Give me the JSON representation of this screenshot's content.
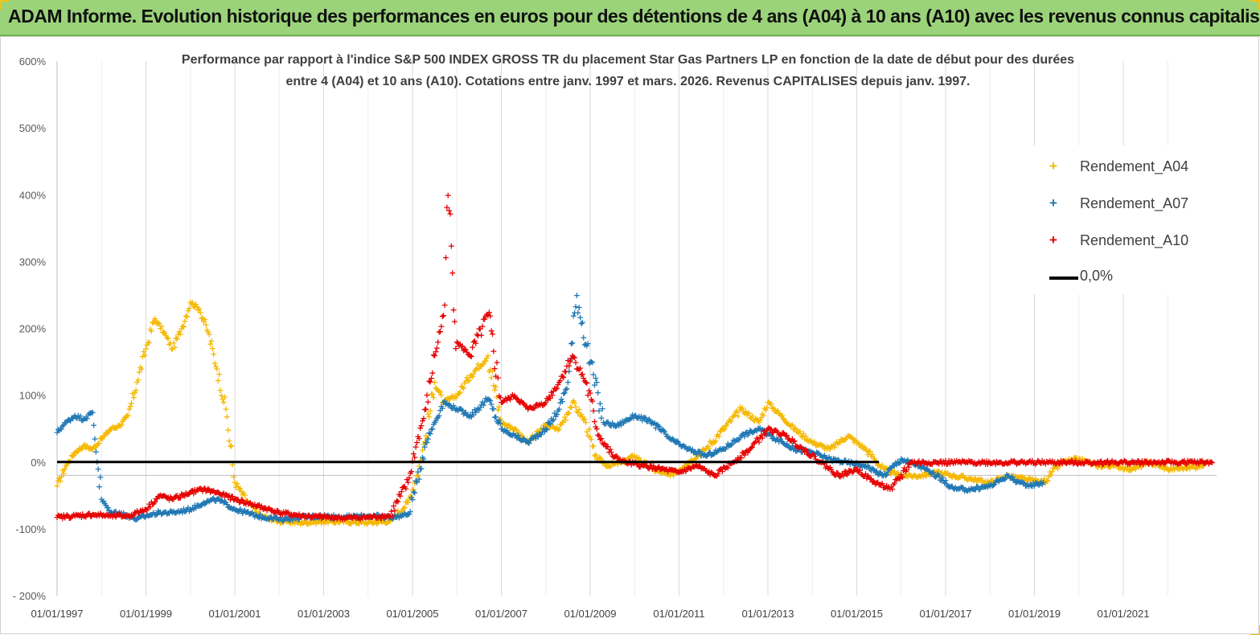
{
  "banner": {
    "title": "ADAM Informe. Evolution historique des performances en euros pour des détentions de 4 ans (A04) à 10 ans (A10) avec les revenus connus capitalisés"
  },
  "colors": {
    "banner_bg": "#9bd37a",
    "A04": "#f5b800",
    "A07": "#1f77b4",
    "A10": "#e60000",
    "zero_line": "#000000"
  },
  "chart_data": {
    "type": "scatter",
    "title": [
      "Performance par rapport à l'indice S&P 500 INDEX GROSS TR  du placement Star Gas Partners LP en fonction de la date de début pour des durées",
      "entre 4 (A04) et 10 ans (A10). Cotations entre janv. 1997 et mars. 2026. Revenus CAPITALISES depuis janv. 1997."
    ],
    "xlabel": "",
    "ylabel": "",
    "ylim": [
      -200,
      600
    ],
    "xlim": [
      1997.0,
      2023.1
    ],
    "y_ticks": [
      "600%",
      "500%",
      "400%",
      "300%",
      "200%",
      "100%",
      "0%",
      "-100%",
      "- 200%"
    ],
    "y_tick_values": [
      600,
      500,
      400,
      300,
      200,
      100,
      0,
      -100,
      -200
    ],
    "x_ticks": [
      "01/01/1997",
      "01/01/1999",
      "01/01/2001",
      "01/01/2003",
      "01/01/2005",
      "01/01/2007",
      "01/01/2009",
      "01/01/2011",
      "01/01/2013",
      "01/01/2015",
      "01/01/2017",
      "01/01/2019",
      "01/01/2021"
    ],
    "x_tick_values": [
      1997,
      1999,
      2001,
      2003,
      2005,
      2007,
      2009,
      2011,
      2013,
      2015,
      2017,
      2019,
      2021
    ],
    "grid": "vertical",
    "legend_position": "right",
    "marker": "+",
    "series": [
      {
        "name": "Rendement_A04",
        "color_key": "A04",
        "x": [
          1997.0,
          1997.2,
          1997.4,
          1997.6,
          1997.8,
          1998.0,
          1998.2,
          1998.4,
          1998.6,
          1998.8,
          1999.0,
          1999.2,
          1999.4,
          1999.6,
          1999.8,
          2000.0,
          2000.2,
          2000.4,
          2000.6,
          2000.8,
          2001.0,
          2001.3,
          2001.6,
          2002.0,
          2002.5,
          2003.0,
          2003.5,
          2004.0,
          2004.5,
          2004.9,
          2005.1,
          2005.3,
          2005.5,
          2005.7,
          2006.0,
          2006.3,
          2006.7,
          2007.0,
          2007.3,
          2007.6,
          2008.0,
          2008.3,
          2008.6,
          2008.9,
          2009.1,
          2009.4,
          2009.7,
          2010.0,
          2010.4,
          2010.8,
          2011.2,
          2011.6,
          2012.0,
          2012.4,
          2012.8,
          2013.0,
          2013.3,
          2013.6,
          2014.0,
          2014.4,
          2014.8,
          2015.2,
          2015.6,
          2016.0,
          2016.4,
          2016.8,
          2017.2,
          2017.6,
          2018.0,
          2018.4,
          2018.8,
          2019.2,
          2019.6,
          2020.0,
          2020.4,
          2020.8,
          2021.2,
          2021.6,
          2022.0,
          2022.4,
          2022.8
        ],
        "y": [
          -35,
          -5,
          15,
          25,
          20,
          35,
          50,
          55,
          70,
          120,
          170,
          215,
          195,
          170,
          200,
          240,
          230,
          195,
          140,
          80,
          -30,
          -60,
          -80,
          -88,
          -90,
          -88,
          -89,
          -90,
          -88,
          -60,
          -20,
          40,
          120,
          90,
          100,
          130,
          160,
          60,
          50,
          30,
          55,
          50,
          90,
          60,
          10,
          -5,
          0,
          10,
          -10,
          -20,
          0,
          20,
          50,
          80,
          60,
          90,
          70,
          50,
          30,
          20,
          40,
          20,
          -10,
          -20,
          -20,
          -15,
          -20,
          -25,
          -30,
          -20,
          -25,
          -30,
          0,
          5,
          -5,
          -5,
          -10,
          0,
          -10,
          -8,
          -5
        ]
      },
      {
        "name": "Rendement_A07",
        "color_key": "A07",
        "x": [
          1997.0,
          1997.2,
          1997.4,
          1997.6,
          1997.8,
          1998.0,
          1998.2,
          1998.4,
          1998.6,
          1998.8,
          1999.0,
          1999.3,
          1999.6,
          2000.0,
          2000.3,
          2000.6,
          2001.0,
          2001.5,
          2002.0,
          2002.5,
          2003.0,
          2003.5,
          2004.0,
          2004.5,
          2004.9,
          2005.1,
          2005.3,
          2005.5,
          2005.7,
          2006.0,
          2006.3,
          2006.7,
          2007.0,
          2007.3,
          2007.6,
          2008.0,
          2008.3,
          2008.5,
          2008.7,
          2009.0,
          2009.3,
          2009.6,
          2010.0,
          2010.4,
          2010.8,
          2011.2,
          2011.6,
          2012.0,
          2012.4,
          2012.8,
          2013.2,
          2013.6,
          2014.0,
          2014.4,
          2014.8,
          2015.2,
          2015.6,
          2016.0,
          2016.4,
          2016.8,
          2017.2,
          2017.6,
          2018.0,
          2018.4,
          2018.8,
          2019.2
        ],
        "y": [
          45,
          60,
          70,
          65,
          75,
          -55,
          -75,
          -75,
          -80,
          -85,
          -80,
          -75,
          -75,
          -70,
          -60,
          -55,
          -70,
          -80,
          -85,
          -82,
          -80,
          -82,
          -80,
          -82,
          -78,
          -30,
          30,
          60,
          90,
          80,
          70,
          95,
          50,
          40,
          30,
          50,
          80,
          120,
          250,
          150,
          60,
          55,
          70,
          60,
          35,
          20,
          10,
          20,
          40,
          50,
          35,
          20,
          15,
          5,
          0,
          -5,
          -20,
          5,
          -5,
          -20,
          -40,
          -40,
          -35,
          -20,
          -35,
          -30
        ]
      },
      {
        "name": "Rendement_A10",
        "color_key": "A10",
        "x": [
          1997.0,
          1997.4,
          1997.8,
          1998.2,
          1998.6,
          1999.0,
          1999.3,
          1999.6,
          2000.0,
          2000.3,
          2000.6,
          2001.0,
          2001.5,
          2002.0,
          2002.5,
          2003.0,
          2003.5,
          2004.0,
          2004.5,
          2004.9,
          2005.1,
          2005.3,
          2005.5,
          2005.7,
          2005.8,
          2006.0,
          2006.3,
          2006.7,
          2007.0,
          2007.3,
          2007.6,
          2008.0,
          2008.3,
          2008.6,
          2008.9,
          2009.2,
          2009.5,
          2009.8,
          2010.2,
          2010.6,
          2011.0,
          2011.4,
          2011.8,
          2012.2,
          2012.6,
          2013.0,
          2013.4,
          2013.8,
          2014.2,
          2014.6,
          2015.0,
          2015.4,
          2015.8,
          2016.2,
          2016.8,
          2017.5,
          2018.2,
          2019.0,
          2019.8,
          2020.6,
          2021.4,
          2022.2,
          2023.0
        ],
        "y": [
          -82,
          -80,
          -78,
          -80,
          -80,
          -70,
          -50,
          -55,
          -45,
          -40,
          -45,
          -55,
          -65,
          -75,
          -80,
          -82,
          -83,
          -82,
          -80,
          -30,
          30,
          80,
          160,
          220,
          400,
          180,
          160,
          220,
          90,
          100,
          80,
          90,
          120,
          160,
          120,
          40,
          10,
          0,
          -5,
          -10,
          -15,
          -5,
          -20,
          0,
          20,
          50,
          40,
          20,
          0,
          -20,
          -10,
          -30,
          -40,
          0,
          0,
          0,
          0,
          0,
          0,
          0,
          0,
          0,
          0
        ]
      },
      {
        "name": "0,0%",
        "color_key": "zero_line",
        "type": "line",
        "x": [
          1997.0,
          2015.5
        ],
        "y": [
          0,
          0
        ]
      }
    ]
  }
}
